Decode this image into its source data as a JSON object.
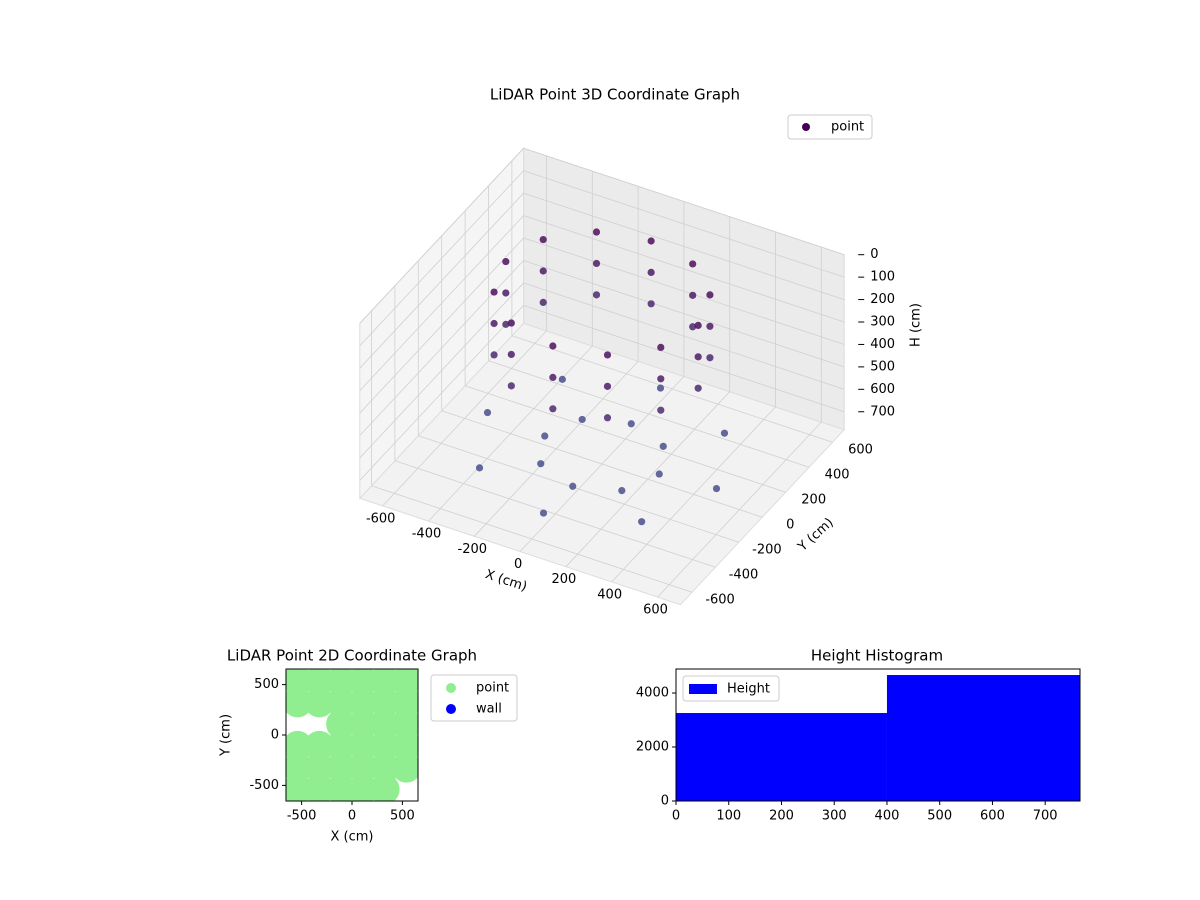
{
  "chart_data": [
    {
      "type": "scatter3d",
      "title": "LiDAR Point 3D Coordinate Graph",
      "x_label": "X (cm)",
      "y_label": "Y (cm)",
      "z_label": "H (cm)",
      "xlim": [
        -700,
        700
      ],
      "ylim": [
        -700,
        700
      ],
      "zlim": [
        0,
        780
      ],
      "z_inverted": true,
      "xticks": [
        -600,
        -400,
        -200,
        0,
        200,
        400,
        600
      ],
      "yticks": [
        -600,
        -400,
        -200,
        0,
        200,
        400,
        600
      ],
      "zticks": [
        0,
        100,
        200,
        300,
        400,
        500,
        600,
        700
      ],
      "colors": [
        "#440154",
        "#3e4a89"
      ],
      "legend": "upper right",
      "series": [
        {
          "name": "point",
          "color": "#440154",
          "x": [
            420,
            364,
            210,
            0,
            -210,
            -364,
            -420,
            -364,
            -210,
            0,
            210,
            364,
            420,
            364,
            210,
            0,
            -210,
            -364,
            -420,
            -364,
            -210,
            0,
            210,
            364,
            420,
            364,
            210,
            0,
            -210,
            -364,
            -420,
            -364,
            -210,
            0,
            210,
            364,
            500,
            354,
            0,
            -354,
            -500,
            -354,
            0,
            354,
            250,
            177,
            0,
            -177,
            -250,
            -177,
            0,
            177
          ],
          "y": [
            0,
            210,
            364,
            420,
            364,
            210,
            0,
            -210,
            -364,
            -420,
            -364,
            -210,
            0,
            210,
            364,
            420,
            364,
            210,
            0,
            -210,
            -364,
            -420,
            -364,
            -210,
            0,
            210,
            364,
            420,
            364,
            210,
            0,
            -210,
            -364,
            -420,
            -364,
            -210,
            0,
            354,
            500,
            354,
            0,
            -354,
            -500,
            -354,
            0,
            177,
            250,
            177,
            0,
            -177,
            -250,
            -177
          ],
          "z": [
            20,
            20,
            20,
            20,
            20,
            20,
            20,
            20,
            20,
            20,
            20,
            20,
            160,
            160,
            160,
            160,
            160,
            160,
            160,
            160,
            160,
            160,
            160,
            160,
            300,
            300,
            300,
            300,
            300,
            300,
            300,
            300,
            300,
            300,
            300,
            300,
            720,
            720,
            720,
            720,
            720,
            720,
            720,
            720,
            740,
            740,
            740,
            740,
            740,
            740,
            740,
            740
          ]
        }
      ]
    },
    {
      "type": "scatter",
      "title": "LiDAR Point 2D Coordinate Graph",
      "x_label": "X (cm)",
      "y_label": "Y (cm)",
      "xlim": [
        -655,
        655
      ],
      "ylim": [
        -655,
        655
      ],
      "xticks": [
        -500,
        0,
        500
      ],
      "yticks": [
        -500,
        0,
        500
      ],
      "legend": "outside right",
      "series": [
        {
          "name": "point",
          "color": "#90ee90",
          "x": [
            -540,
            -324,
            -108,
            108,
            324,
            540,
            -540,
            -324,
            -108,
            108,
            324,
            540,
            -108,
            108,
            324,
            540,
            -540,
            -324,
            -108,
            108,
            324,
            540,
            -540,
            -324,
            -108,
            108,
            324,
            540,
            -540,
            -324,
            -108,
            108,
            324
          ],
          "y": [
            540,
            540,
            540,
            540,
            540,
            540,
            324,
            324,
            324,
            324,
            324,
            324,
            108,
            108,
            108,
            108,
            -108,
            -108,
            -108,
            -108,
            -108,
            -108,
            -324,
            -324,
            -324,
            -324,
            -324,
            -324,
            -540,
            -540,
            -540,
            -540,
            -540
          ]
        },
        {
          "name": "wall",
          "color": "#0000ff",
          "x": [],
          "y": []
        }
      ]
    },
    {
      "type": "histogram",
      "title": "Height Histogram",
      "bins": [
        0,
        400,
        766
      ],
      "counts": [
        3259,
        4667
      ],
      "series_name": "Height",
      "color": "#0000ff",
      "xlim": [
        0,
        766
      ],
      "ylim": [
        0,
        4890
      ],
      "xticks": [
        0,
        100,
        200,
        300,
        400,
        500,
        600,
        700
      ],
      "yticks": [
        0,
        2000,
        4000
      ],
      "legend": "upper left"
    }
  ]
}
